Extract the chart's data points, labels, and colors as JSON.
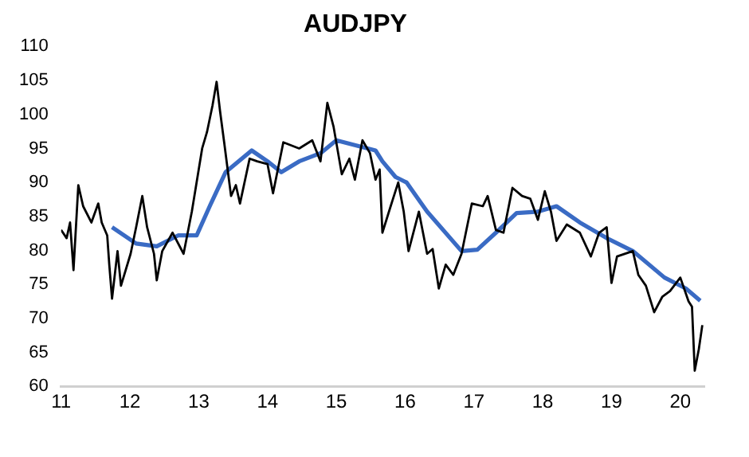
{
  "chart_data": {
    "type": "line",
    "title": "AUDJPY",
    "legend": false,
    "grid": false,
    "marker": "none",
    "line_style": "solid",
    "xlim": [
      2011,
      2020.35
    ],
    "xticks": [
      {
        "value": 2011,
        "label": "11"
      },
      {
        "value": 2012,
        "label": "12"
      },
      {
        "value": 2013,
        "label": "13"
      },
      {
        "value": 2014,
        "label": "14"
      },
      {
        "value": 2015,
        "label": "15"
      },
      {
        "value": 2016,
        "label": "16"
      },
      {
        "value": 2017,
        "label": "17"
      },
      {
        "value": 2018,
        "label": "18"
      },
      {
        "value": 2019,
        "label": "19"
      },
      {
        "value": 2020,
        "label": "20"
      }
    ],
    "ylim": [
      60,
      110
    ],
    "yticks": [
      60,
      65,
      70,
      75,
      80,
      85,
      90,
      95,
      100,
      105,
      110
    ],
    "series": [
      {
        "color": "#000000",
        "x": [
          2011.0,
          2011.08,
          2011.13,
          2011.18,
          2011.25,
          2011.32,
          2011.44,
          2011.54,
          2011.59,
          2011.67,
          2011.7,
          2011.74,
          2011.82,
          2011.87,
          2012.01,
          2012.09,
          2012.18,
          2012.25,
          2012.35,
          2012.39,
          2012.47,
          2012.62,
          2012.78,
          2012.9,
          2013.05,
          2013.12,
          2013.2,
          2013.26,
          2013.31,
          2013.37,
          2013.47,
          2013.54,
          2013.6,
          2013.74,
          2013.85,
          2014.0,
          2014.08,
          2014.23,
          2014.46,
          2014.65,
          2014.77,
          2014.87,
          2014.96,
          2015.08,
          2015.19,
          2015.27,
          2015.38,
          2015.49,
          2015.57,
          2015.63,
          2015.67,
          2015.79,
          2015.9,
          2015.98,
          2016.05,
          2016.2,
          2016.32,
          2016.4,
          2016.49,
          2016.59,
          2016.7,
          2016.82,
          2016.97,
          2017.13,
          2017.2,
          2017.32,
          2017.43,
          2017.56,
          2017.7,
          2017.82,
          2017.93,
          2018.03,
          2018.12,
          2018.2,
          2018.35,
          2018.54,
          2018.7,
          2018.82,
          2018.93,
          2019.0,
          2019.08,
          2019.31,
          2019.39,
          2019.5,
          2019.62,
          2019.74,
          2019.85,
          2020.0,
          2020.12,
          2020.17,
          2020.21,
          2020.27,
          2020.32
        ],
        "values": [
          83.0,
          81.8,
          84.1,
          77.1,
          89.6,
          86.5,
          84.1,
          86.9,
          84.1,
          82.2,
          77.9,
          72.9,
          79.9,
          74.8,
          79.5,
          83.4,
          88.0,
          83.4,
          79.5,
          75.6,
          79.9,
          82.6,
          79.5,
          85.7,
          95.0,
          97.4,
          101.3,
          104.8,
          100.5,
          95.9,
          88.0,
          89.6,
          86.9,
          93.5,
          93.1,
          92.7,
          88.4,
          95.9,
          95.0,
          96.2,
          93.1,
          101.7,
          98.2,
          91.2,
          93.5,
          90.4,
          96.2,
          94.3,
          90.4,
          91.9,
          82.6,
          86.5,
          90.0,
          85.7,
          79.9,
          85.7,
          79.5,
          80.2,
          74.4,
          77.9,
          76.4,
          79.5,
          86.9,
          86.5,
          88.0,
          83.0,
          82.6,
          89.2,
          88.0,
          87.6,
          84.5,
          88.7,
          85.7,
          81.4,
          83.8,
          82.6,
          79.1,
          82.6,
          83.4,
          75.2,
          79.1,
          79.9,
          76.4,
          74.8,
          70.9,
          73.2,
          74.0,
          76.0,
          72.5,
          71.7,
          62.3,
          65.5,
          69.0
        ]
      },
      {
        "color": "#3a6bc4",
        "x": [
          2011.74,
          2012.09,
          2012.39,
          2012.7,
          2012.97,
          2013.16,
          2013.39,
          2013.77,
          2014.0,
          2014.2,
          2014.46,
          2014.77,
          2015.0,
          2015.38,
          2015.57,
          2015.67,
          2015.86,
          2016.02,
          2016.32,
          2016.82,
          2017.05,
          2017.32,
          2017.62,
          2017.93,
          2018.2,
          2018.54,
          2018.93,
          2019.31,
          2019.77,
          2020.08,
          2020.29
        ],
        "values": [
          83.4,
          81.0,
          80.6,
          82.2,
          82.2,
          86.5,
          91.5,
          94.7,
          93.1,
          91.5,
          93.1,
          94.3,
          96.2,
          95.2,
          94.7,
          93.1,
          90.8,
          90.0,
          85.7,
          79.9,
          80.1,
          82.6,
          85.5,
          85.7,
          86.5,
          84.1,
          81.8,
          79.9,
          76.0,
          74.4,
          72.6
        ]
      }
    ]
  }
}
